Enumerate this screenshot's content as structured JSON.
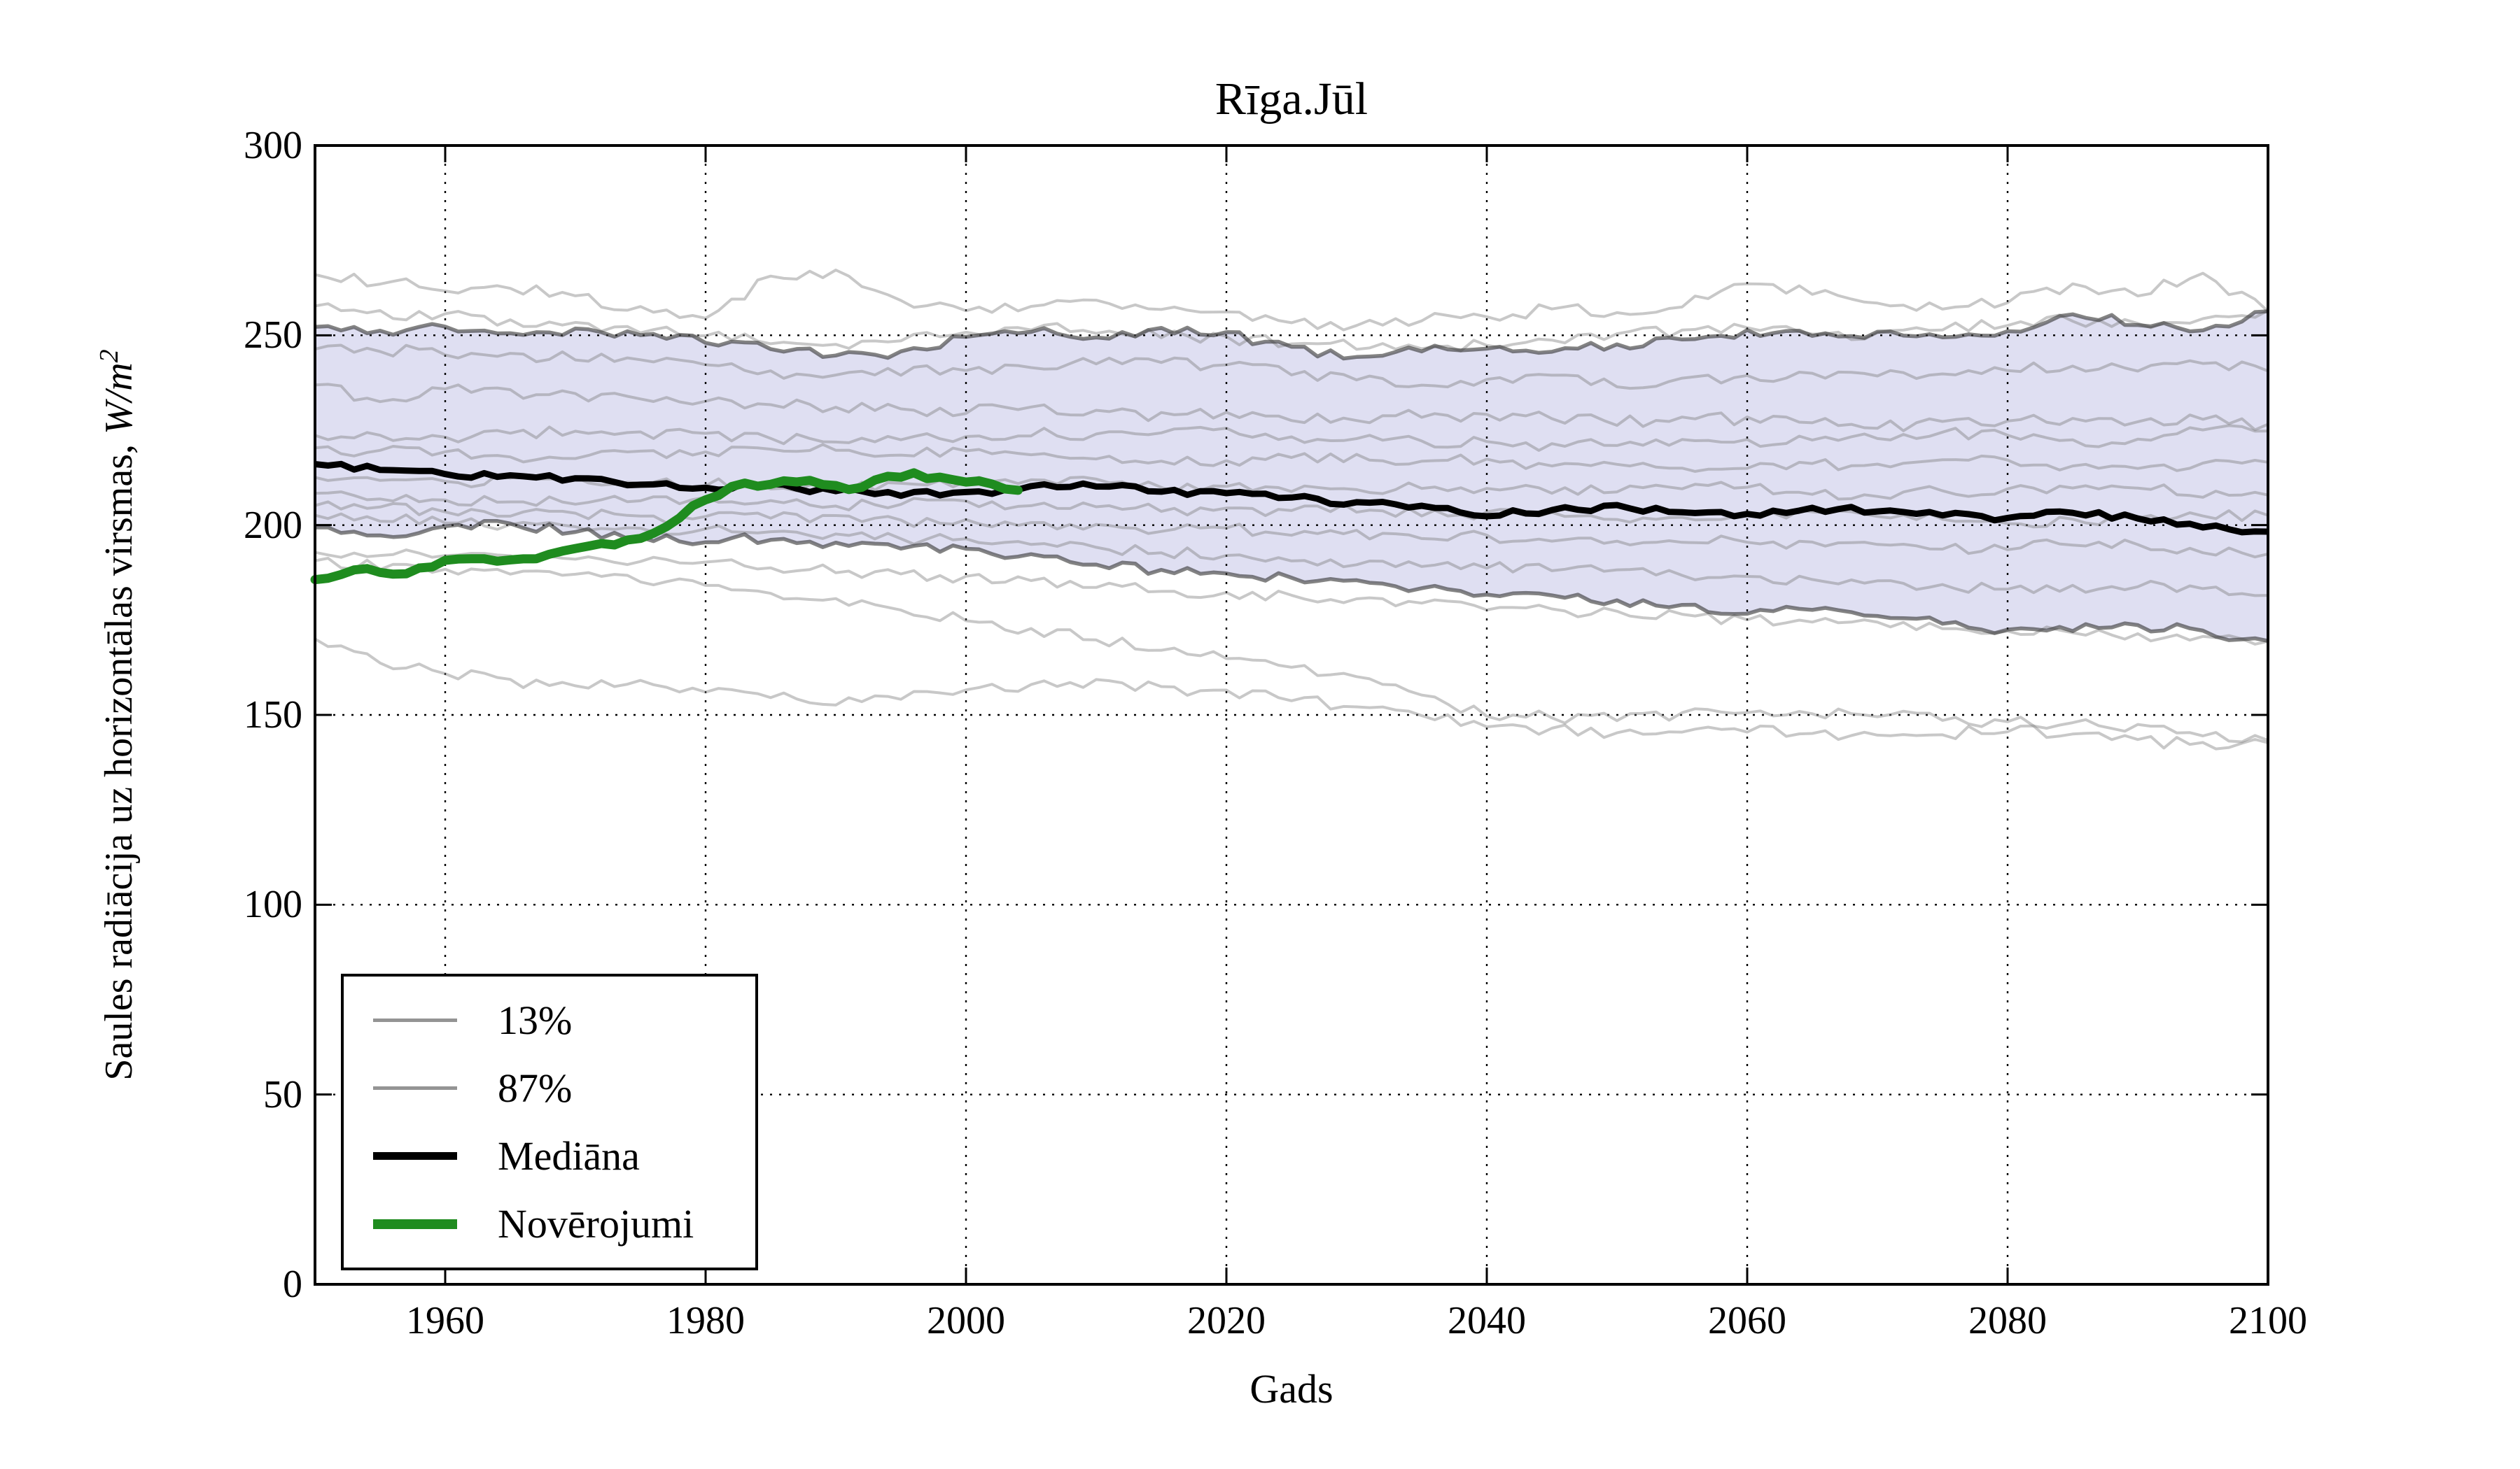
{
  "title": "Rīga.Jūl",
  "axes": {
    "xlabel": "Gads",
    "ylabel_text": "Saules radiācija uz horizontālas virsmas, ",
    "ylabel_unit": "W/m",
    "ylabel_exponent": "2",
    "xlim": [
      1950,
      2100
    ],
    "ylim": [
      0,
      300
    ],
    "xticks": [
      1960,
      1980,
      2000,
      2020,
      2040,
      2060,
      2080,
      2100
    ],
    "yticks": [
      0,
      50,
      100,
      150,
      200,
      250,
      300
    ],
    "grid": "dotted"
  },
  "legend": {
    "position": "lower left",
    "items": [
      {
        "label": "13%",
        "color": "#949494",
        "line_width": 5
      },
      {
        "label": "87%",
        "color": "#949494",
        "line_width": 5
      },
      {
        "label": "Mediāna",
        "color": "#000000",
        "line_width": 11
      },
      {
        "label": "Novērojumi",
        "color": "#1f8c1f",
        "line_width": 14
      }
    ]
  },
  "colors": {
    "band_fill": "#dfdff2",
    "percentile_line": "rgba(55,55,55,0.62)",
    "ensemble_line": "rgba(125,125,125,0.42)",
    "median_line": "#000000",
    "observations_line": "#1f8c1f",
    "grid_line": "#000000",
    "frame": "#000000"
  },
  "chart_data": {
    "type": "line",
    "title": "Rīga.Jūl",
    "xlabel": "Gads",
    "ylabel": "Saules radiācija uz horizontālas virsmas, W/m2",
    "xlim": [
      1950,
      2100
    ],
    "ylim": [
      0,
      300
    ],
    "legend_position": "lower left",
    "grid": true,
    "series": [
      {
        "name": "87%",
        "role": "percentile-high",
        "x0": 1950,
        "dx": 5,
        "wiggle": 1.3,
        "values": [
          252,
          251,
          252.5,
          250.5,
          251.5,
          250,
          248.5,
          246.5,
          244.5,
          245.5,
          249.5,
          251,
          250,
          251.5,
          250.5,
          246.5,
          244.5,
          246,
          247,
          246,
          247.5,
          249,
          251,
          250,
          250.5,
          249,
          250.5,
          256,
          253,
          251.5,
          256
        ]
      },
      {
        "name": "13%",
        "role": "percentile-low",
        "x0": 1950,
        "dx": 5,
        "wiggle": 1.3,
        "values": [
          199.5,
          197.5,
          199.5,
          200,
          198.5,
          196.5,
          196,
          196.5,
          195,
          194,
          193.5,
          192,
          190,
          188,
          187.5,
          186,
          185,
          183,
          182,
          181,
          180,
          178.5,
          177,
          177.5,
          176,
          174,
          172,
          172.5,
          173.5,
          172,
          169.5
        ]
      },
      {
        "name": "Mediāna",
        "role": "median",
        "x0": 1950,
        "dx": 5,
        "wiggle": 0.9,
        "values": [
          216,
          214.5,
          213.5,
          213,
          212,
          211,
          210,
          210.5,
          209,
          208,
          208.5,
          210,
          210.5,
          209,
          208.5,
          207,
          206,
          205,
          202.5,
          204,
          205,
          203.5,
          203,
          204.5,
          203.5,
          202.5,
          202,
          203,
          202,
          199.5,
          198
        ]
      },
      {
        "name": "Novērojumi",
        "role": "observations",
        "x0": 1950,
        "dx": 2,
        "wiggle": 0.9,
        "values": [
          186,
          187,
          188.5,
          187,
          188.5,
          190.5,
          191,
          190.5,
          191,
          192,
          193.5,
          195,
          196,
          198,
          202,
          207,
          210,
          210.5,
          211.5,
          212,
          210.5,
          210,
          212.5,
          213.5,
          212.5,
          211.5,
          210.5,
          209.5
        ]
      },
      {
        "name": "ensemble-01",
        "role": "ensemble",
        "x0": 1950,
        "dx": 5,
        "wiggle": 1.7,
        "values": [
          266,
          264,
          262,
          263,
          260,
          257,
          255,
          265,
          267,
          259,
          256,
          257,
          259,
          257,
          256,
          253,
          252,
          254,
          255,
          257,
          256,
          258,
          263,
          261,
          258,
          257,
          259,
          263,
          261,
          266,
          257
        ]
      },
      {
        "name": "ensemble-02",
        "role": "ensemble",
        "x0": 1950,
        "dx": 5,
        "wiggle": 1.6,
        "values": [
          258,
          256,
          255,
          254,
          253,
          251,
          250,
          248,
          247,
          249,
          251,
          252,
          251,
          250,
          249,
          248,
          247,
          246,
          248,
          249,
          250,
          251,
          252,
          251,
          250,
          252,
          253,
          254,
          253,
          255,
          256
        ]
      },
      {
        "name": "ensemble-03",
        "role": "ensemble",
        "x0": 1950,
        "dx": 5,
        "wiggle": 1.6,
        "values": [
          247,
          246,
          245.5,
          245,
          244,
          243,
          242,
          240,
          239,
          240,
          241,
          242,
          242.5,
          243,
          242,
          240,
          238,
          237,
          238,
          239,
          237,
          238,
          239,
          240,
          239,
          240,
          241,
          242,
          241,
          242,
          241
        ]
      },
      {
        "name": "ensemble-04",
        "role": "ensemble",
        "x0": 1950,
        "dx": 5,
        "wiggle": 1.7,
        "values": [
          237,
          232,
          236,
          235,
          234,
          233,
          233,
          232,
          231,
          230,
          230,
          231,
          230,
          229,
          229,
          228,
          228,
          229,
          229,
          228,
          227,
          228,
          228,
          227,
          226,
          227,
          227,
          228,
          227,
          228,
          226
        ]
      },
      {
        "name": "ensemble-05",
        "role": "ensemble",
        "x0": 1950,
        "dx": 5,
        "wiggle": 1.6,
        "values": [
          224,
          223,
          223,
          224,
          225,
          224,
          224,
          223,
          222,
          223,
          223,
          224,
          224,
          225,
          225,
          223,
          223,
          222,
          222,
          221,
          221,
          222,
          222,
          223,
          223,
          224,
          224,
          222,
          222,
          225,
          225
        ]
      },
      {
        "name": "ensemble-06",
        "role": "ensemble",
        "x0": 1950,
        "dx": 5,
        "wiggle": 1.5,
        "values": [
          220,
          219.5,
          219,
          218,
          218,
          219,
          219,
          220,
          220,
          219,
          219,
          218,
          218,
          217,
          217,
          218,
          218,
          217,
          217,
          216,
          216,
          215,
          215,
          216,
          216,
          217,
          217,
          215,
          215,
          216,
          216
        ]
      },
      {
        "name": "ensemble-07",
        "role": "ensemble",
        "x0": 1950,
        "dx": 5,
        "wiggle": 1.5,
        "values": [
          212,
          211.5,
          211,
          212,
          212,
          211,
          211,
          210,
          210,
          211,
          211,
          212,
          212,
          210,
          210,
          209,
          209,
          210,
          210,
          209,
          209,
          210,
          210,
          208,
          208,
          209,
          209,
          210,
          210,
          208,
          208
        ]
      },
      {
        "name": "ensemble-08",
        "role": "ensemble",
        "x0": 1950,
        "dx": 5,
        "wiggle": 1.5,
        "values": [
          208,
          207.5,
          207,
          206,
          206,
          207,
          207,
          206,
          205,
          206,
          206,
          205,
          205,
          204,
          204,
          204,
          204,
          203,
          203,
          203,
          202,
          202,
          203,
          203,
          202,
          202,
          201,
          201,
          202,
          202,
          203
        ]
      },
      {
        "name": "ensemble-09",
        "role": "ensemble",
        "x0": 1950,
        "dx": 5,
        "wiggle": 1.5,
        "values": [
          205,
          204.5,
          204,
          203,
          203,
          202,
          202,
          202,
          202,
          201,
          201,
          200,
          200,
          199,
          199,
          198,
          198,
          197,
          197,
          196,
          196,
          196,
          196,
          195,
          195,
          194,
          194,
          195,
          195,
          193,
          193
        ]
      },
      {
        "name": "ensemble-10",
        "role": "ensemble",
        "x0": 1950,
        "dx": 5,
        "wiggle": 1.5,
        "values": [
          202,
          201.5,
          201,
          200,
          200,
          199,
          199,
          198,
          197,
          196.5,
          196,
          195,
          194,
          193,
          192,
          191,
          190,
          189.5,
          189,
          188.5,
          188,
          187,
          186,
          185.5,
          185,
          184,
          183,
          183.5,
          184,
          183,
          182
        ]
      },
      {
        "name": "ensemble-11",
        "role": "ensemble",
        "x0": 1950,
        "dx": 5,
        "wiggle": 1.5,
        "values": [
          193,
          192.5,
          192,
          191.5,
          191,
          190.5,
          190,
          189,
          188,
          187,
          186,
          185,
          184,
          183,
          182,
          181,
          180,
          179,
          178,
          177.5,
          177,
          176,
          175,
          174.5,
          174,
          173,
          172,
          171.5,
          171,
          170.5,
          170
        ]
      },
      {
        "name": "ensemble-12",
        "role": "ensemble",
        "x0": 1950,
        "dx": 5,
        "wiggle": 1.6,
        "values": [
          190,
          189,
          188,
          187.5,
          187,
          185.5,
          184,
          182,
          180,
          177.5,
          175,
          172.5,
          170,
          167.5,
          165,
          162.5,
          160,
          155,
          150,
          149.5,
          149,
          150,
          151,
          150.5,
          150,
          149,
          148,
          147.5,
          147,
          145,
          143
        ]
      },
      {
        "name": "ensemble-13",
        "role": "ensemble",
        "x0": 1950,
        "dx": 5,
        "wiggle": 1.7,
        "values": [
          170,
          164,
          161,
          159,
          158,
          159,
          156,
          155,
          153,
          154,
          157,
          158,
          159,
          157,
          156,
          154,
          152,
          149.5,
          147,
          146,
          145,
          145.5,
          146,
          145,
          144,
          145,
          146,
          144.5,
          143,
          142.5,
          142
        ]
      }
    ]
  }
}
